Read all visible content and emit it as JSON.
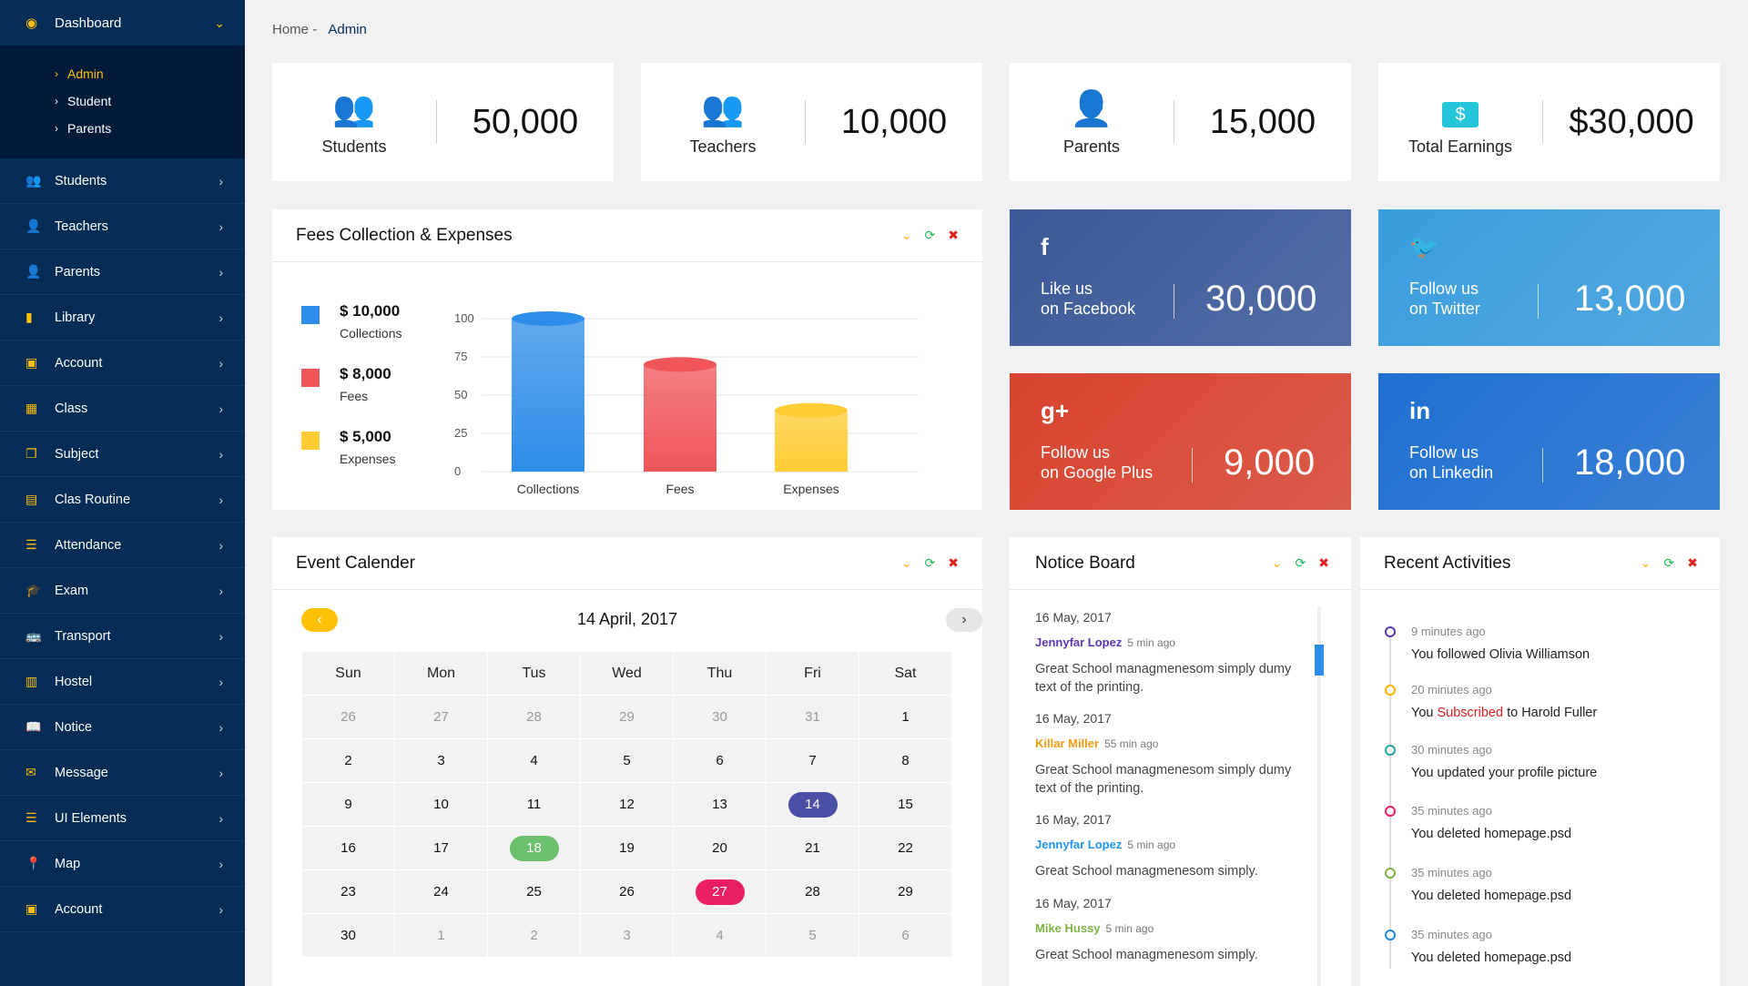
{
  "sidebar": {
    "dashboard": {
      "label": "Dashboard",
      "icon": "dashboard-icon"
    },
    "sub_items": [
      {
        "label": "Admin",
        "active": true
      },
      {
        "label": "Student",
        "active": false
      },
      {
        "label": "Parents",
        "active": false
      }
    ],
    "items": [
      {
        "label": "Students",
        "icon": "students-icon"
      },
      {
        "label": "Teachers",
        "icon": "teachers-icon"
      },
      {
        "label": "Parents",
        "icon": "parents-icon"
      },
      {
        "label": "Library",
        "icon": "library-icon"
      },
      {
        "label": "Account",
        "icon": "account-icon"
      },
      {
        "label": "Class",
        "icon": "class-icon"
      },
      {
        "label": "Subject",
        "icon": "subject-icon"
      },
      {
        "label": "Clas Routine",
        "icon": "routine-icon"
      },
      {
        "label": "Attendance",
        "icon": "attendance-icon"
      },
      {
        "label": "Exam",
        "icon": "exam-icon"
      },
      {
        "label": "Transport",
        "icon": "transport-icon"
      },
      {
        "label": "Hostel",
        "icon": "hostel-icon"
      },
      {
        "label": "Notice",
        "icon": "notice-icon"
      },
      {
        "label": "Message",
        "icon": "message-icon"
      },
      {
        "label": "UI Elements",
        "icon": "ui-elements-icon"
      },
      {
        "label": "Map",
        "icon": "map-icon"
      },
      {
        "label": "Account",
        "icon": "account-icon"
      }
    ]
  },
  "breadcrumb": {
    "home": "Home",
    "sep": "-",
    "current": "Admin"
  },
  "stats": [
    {
      "label": "Students",
      "value": "50,000",
      "icon": "students-icon",
      "color": "#8bc34a"
    },
    {
      "label": "Teachers",
      "value": "10,000",
      "icon": "teachers-icon",
      "color": "#2196f3"
    },
    {
      "label": "Parents",
      "value": "15,000",
      "icon": "parents-icon",
      "color": "#ffc107"
    },
    {
      "label": "Total Earnings",
      "value": "$30,000",
      "icon": "earnings-icon",
      "color": "#26c6da"
    }
  ],
  "fees": {
    "title": "Fees Collection & Expenses",
    "legend": [
      {
        "amount": "$ 10,000",
        "name": "Collections",
        "color": "#2d8de8"
      },
      {
        "amount": "$ 8,000",
        "name": "Fees",
        "color": "#f0555a"
      },
      {
        "amount": "$ 5,000",
        "name": "Expenses",
        "color": "#ffcc33"
      }
    ]
  },
  "chart_data": {
    "type": "bar",
    "categories": [
      "Collections",
      "Fees",
      "Expenses"
    ],
    "values": [
      100,
      70,
      40
    ],
    "ylim": [
      0,
      100
    ],
    "yticks": [
      "0",
      "25",
      "50",
      "75",
      "100"
    ],
    "colors": [
      "#2d8de8",
      "#f0555a",
      "#ffcc33"
    ],
    "grid": true
  },
  "social": [
    {
      "icon": "facebook-icon",
      "glyph": "f",
      "line1": "Like us",
      "line2": "on Facebook",
      "value": "30,000",
      "color": "#3b5998"
    },
    {
      "icon": "twitter-icon",
      "glyph": "🐦",
      "line1": "Follow us",
      "line2": "on Twitter",
      "value": "13,000",
      "color": "#3a9ddd"
    },
    {
      "icon": "google-plus-icon",
      "glyph": "g+",
      "line1": "Follow us",
      "line2": "on Google Plus",
      "value": "9,000",
      "color": "#d8432f"
    },
    {
      "icon": "linkedin-icon",
      "glyph": "in",
      "line1": "Follow us",
      "line2": "on Linkedin",
      "value": "18,000",
      "color": "#1f6fd1"
    }
  ],
  "calendar": {
    "title": "Event Calender",
    "date_label": "14 April, 2017",
    "weekdays": [
      "Sun",
      "Mon",
      "Tus",
      "Wed",
      "Thu",
      "Fri",
      "Sat"
    ],
    "weeks": [
      [
        "26",
        "27",
        "28",
        "29",
        "30",
        "31",
        "1"
      ],
      [
        "2",
        "3",
        "4",
        "5",
        "6",
        "7",
        "8"
      ],
      [
        "9",
        "10",
        "11",
        "12",
        "13",
        "14",
        "15"
      ],
      [
        "16",
        "17",
        "18",
        "19",
        "20",
        "21",
        "22"
      ],
      [
        "23",
        "24",
        "25",
        "26",
        "27",
        "28",
        "29"
      ],
      [
        "30",
        "1",
        "2",
        "3",
        "4",
        "5",
        "6"
      ]
    ],
    "highlights": {
      "14": "#4b4fa6",
      "18": "#6cbf6c",
      "27": "#e91e63"
    }
  },
  "notice": {
    "title": "Notice Board",
    "items": [
      {
        "date": "16 May, 2017",
        "name": "Jennyfar Lopez",
        "ago": "5 min ago",
        "text": "Great School managmenesom simply dumy text of the printing.",
        "color": "#5e35b1"
      },
      {
        "date": "16 May, 2017",
        "name": "Killar Miller",
        "ago": "55 min ago",
        "text": "Great School managmenesom simply dumy text of the printing.",
        "color": "#f39c12"
      },
      {
        "date": "16 May, 2017",
        "name": "Jennyfar Lopez",
        "ago": "5 min ago",
        "text": "Great School managmenesom simply.",
        "color": "#2196f3"
      },
      {
        "date": "16 May, 2017",
        "name": "Mike Hussy",
        "ago": "5 min ago",
        "text": "Great School managmenesom simply.",
        "color": "#7cb342"
      }
    ]
  },
  "activities": {
    "title": "Recent Activities",
    "items": [
      {
        "time": "9 minutes ago",
        "pre": "You followed Olivia Williamson",
        "hl": "",
        "post": "",
        "color": "#5e35b1"
      },
      {
        "time": "20 minutes ago",
        "pre": "You ",
        "hl": "Subscribed",
        "post": " to Harold Fuller",
        "color": "#ffb300"
      },
      {
        "time": "30 minutes ago",
        "pre": "You updated your profile picture",
        "hl": "",
        "post": "",
        "color": "#26a69a"
      },
      {
        "time": "35 minutes ago",
        "pre": "You deleted homepage.psd",
        "hl": "",
        "post": "",
        "color": "#e91e63"
      },
      {
        "time": "35 minutes ago",
        "pre": "You deleted homepage.psd",
        "hl": "",
        "post": "",
        "color": "#7cb342"
      },
      {
        "time": "35 minutes ago",
        "pre": "You deleted homepage.psd",
        "hl": "",
        "post": "",
        "color": "#1e88e5"
      }
    ]
  }
}
